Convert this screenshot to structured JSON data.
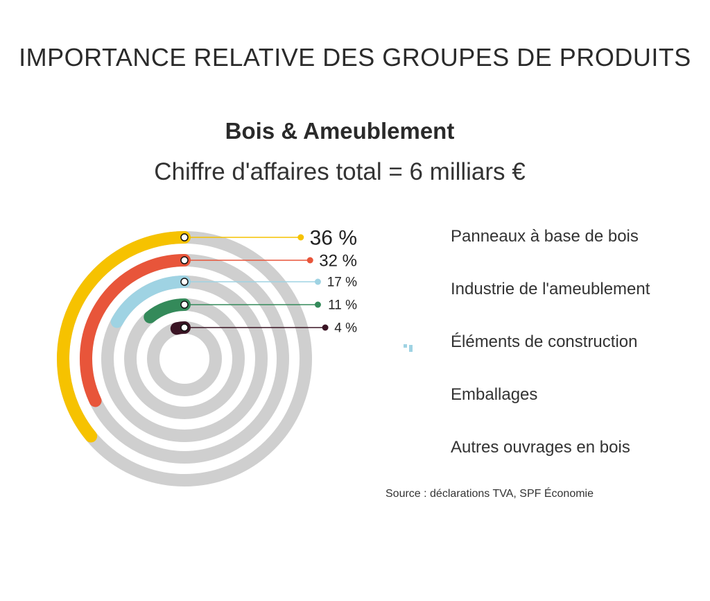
{
  "title": "IMPORTANCE RELATIVE DES GROUPES DE PRODUITS",
  "subtitle": "Bois & Ameublement",
  "total_label": "Chiffre d'affaires total = 6 milliars €",
  "source": "Source : déclarations TVA, SPF Économie",
  "chart_data": {
    "type": "radial-bar",
    "title": "Bois & Ameublement",
    "subtitle": "Chiffre d'affaires total = 6 milliars €",
    "unit": "%",
    "track_color": "#cfcfcf",
    "series": [
      {
        "name": "Panneaux à base de bois",
        "value": 36,
        "label": "36 %",
        "color": "#f6c200",
        "icon": "wood-panel-icon"
      },
      {
        "name": "Industrie de l'ameublement",
        "value": 32,
        "label": "32 %",
        "color": "#e8553a",
        "icon": "table-chairs-icon"
      },
      {
        "name": "Éléments de construction",
        "value": 17,
        "label": "17 %",
        "color": "#9fd3e3",
        "icon": "house-icon"
      },
      {
        "name": "Emballages",
        "value": 11,
        "label": "11 %",
        "color": "#348a5a",
        "icon": "pallet-icon"
      },
      {
        "name": "Autres ouvrages en bois",
        "value": 4,
        "label": "4 %",
        "color": "#3a1424",
        "icon": "playground-icon"
      }
    ]
  }
}
